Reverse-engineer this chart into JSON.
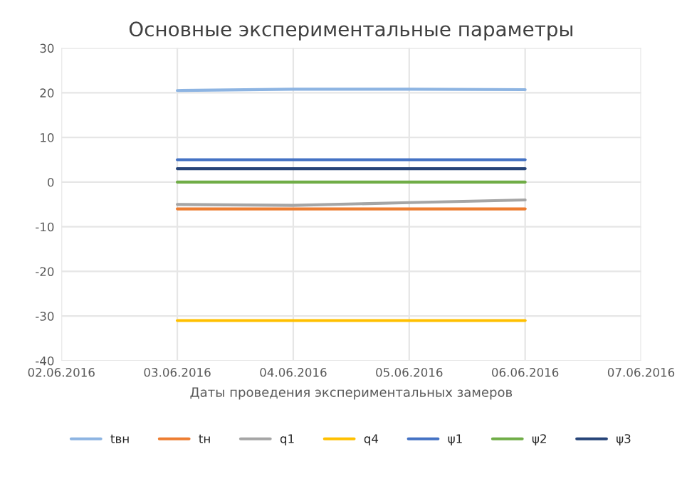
{
  "chart_data": {
    "type": "line",
    "title": "Основные экспериментальные параметры",
    "xlabel": "Даты проведения экспериментальных замеров",
    "x": [
      "2016-06-03",
      "2016-06-04",
      "2016-06-05",
      "2016-06-06"
    ],
    "series": [
      {
        "name": "tвн",
        "color": "#8db4e2",
        "values": [
          20.5,
          20.8,
          20.8,
          20.7
        ]
      },
      {
        "name": "tн",
        "color": "#ed7d31",
        "values": [
          -6,
          -6,
          -6,
          -6
        ]
      },
      {
        "name": "q1",
        "color": "#a5a5a5",
        "values": [
          -5,
          -5.2,
          -4.6,
          -4
        ]
      },
      {
        "name": "q4",
        "color": "#ffc000",
        "values": [
          -31,
          -31,
          -31,
          -31
        ]
      },
      {
        "name": "ψ1",
        "color": "#4472c4",
        "values": [
          5,
          5,
          5,
          5
        ]
      },
      {
        "name": "ψ2",
        "color": "#70ad47",
        "values": [
          0,
          0,
          0,
          0
        ]
      },
      {
        "name": "ψ3",
        "color": "#264478",
        "values": [
          3,
          3,
          3,
          3
        ]
      }
    ],
    "xlim": [
      "2016-06-02",
      "2016-06-07"
    ],
    "xticks": [
      {
        "value": "2016-06-02",
        "label": "02.06.2016"
      },
      {
        "value": "2016-06-03",
        "label": "03.06.2016"
      },
      {
        "value": "2016-06-04",
        "label": "04.06.2016"
      },
      {
        "value": "2016-06-05",
        "label": "05.06.2016"
      },
      {
        "value": "2016-06-06",
        "label": "06.06.2016"
      },
      {
        "value": "2016-06-07",
        "label": "07.06.2016"
      }
    ],
    "ylim": [
      -40,
      30
    ],
    "yticks": [
      -40,
      -30,
      -20,
      -10,
      0,
      10,
      20,
      30
    ],
    "grid": true,
    "legend": "bottom"
  }
}
